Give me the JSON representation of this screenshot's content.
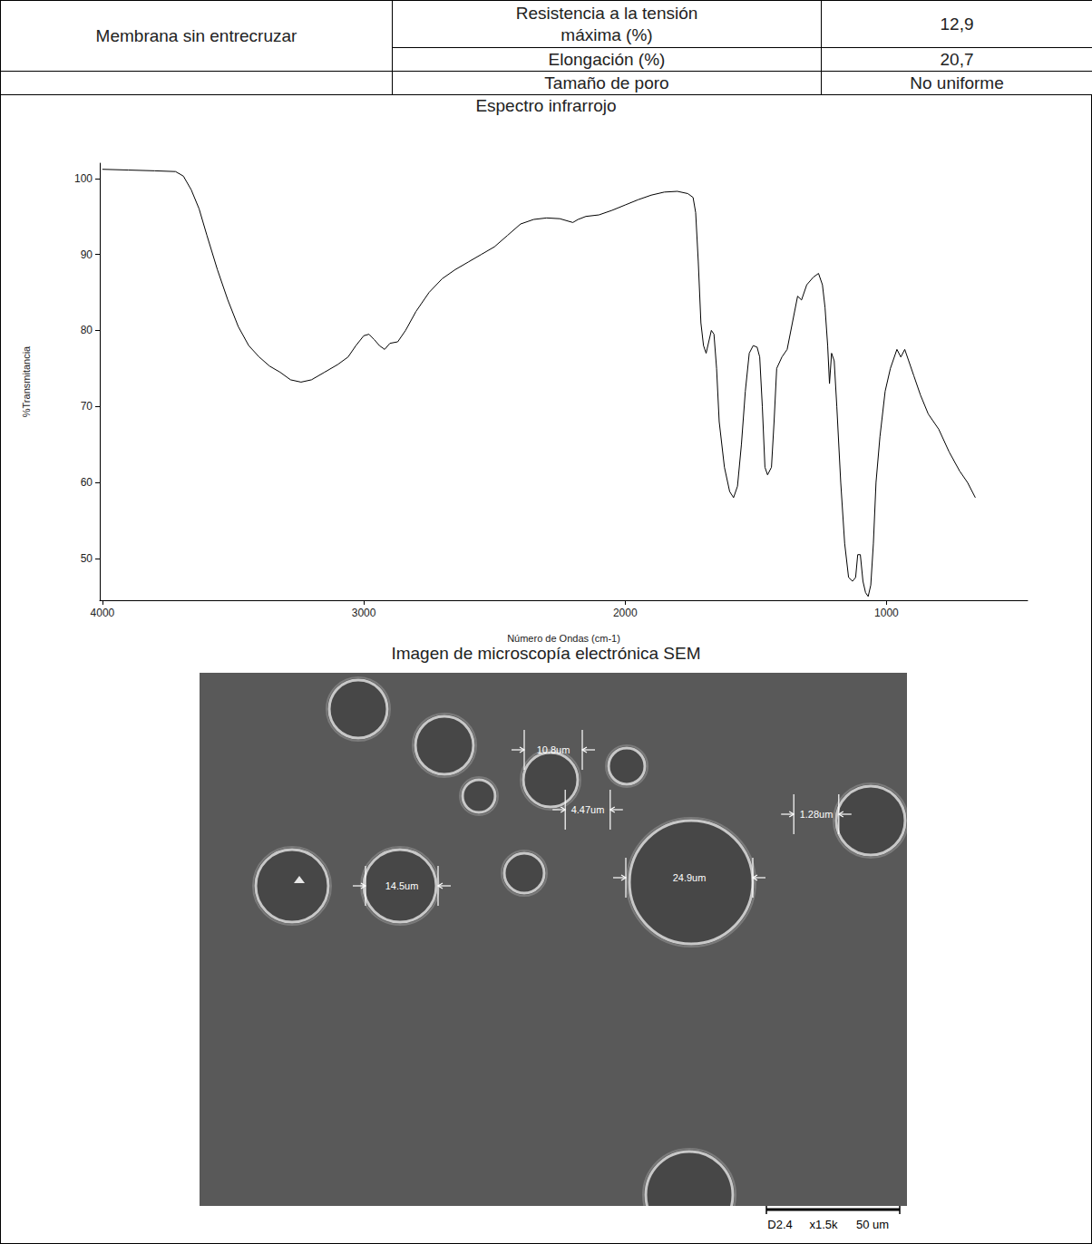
{
  "table": {
    "group": "Membrana sin entrecruzar",
    "rows": [
      [
        "Resistencia a la tensión máxima (%)",
        "12,9"
      ],
      [
        "Elongación (%)",
        "20,7"
      ],
      [
        "Tamaño de poro",
        "No uniforme"
      ]
    ]
  },
  "chart_data": {
    "type": "line",
    "title": "Espectro infrarrojo",
    "x_label": "Número de Ondas (cm-1)",
    "y_label": "%Transmitancia",
    "x": [
      4000,
      3900,
      3800,
      3720,
      3690,
      3660,
      3630,
      3600,
      3560,
      3520,
      3480,
      3440,
      3400,
      3360,
      3320,
      3280,
      3240,
      3200,
      3150,
      3100,
      3060,
      3030,
      3000,
      2980,
      2960,
      2940,
      2920,
      2900,
      2870,
      2840,
      2800,
      2750,
      2700,
      2650,
      2600,
      2550,
      2500,
      2450,
      2400,
      2350,
      2300,
      2250,
      2200,
      2180,
      2150,
      2100,
      2050,
      2000,
      1950,
      1900,
      1850,
      1800,
      1760,
      1740,
      1730,
      1720,
      1710,
      1700,
      1690,
      1680,
      1670,
      1660,
      1650,
      1640,
      1620,
      1600,
      1585,
      1570,
      1555,
      1540,
      1525,
      1510,
      1495,
      1485,
      1475,
      1465,
      1455,
      1440,
      1430,
      1420,
      1400,
      1380,
      1360,
      1340,
      1325,
      1305,
      1280,
      1260,
      1245,
      1235,
      1225,
      1218,
      1210,
      1200,
      1190,
      1175,
      1160,
      1145,
      1130,
      1118,
      1110,
      1100,
      1090,
      1080,
      1070,
      1060,
      1050,
      1040,
      1025,
      1005,
      985,
      960,
      945,
      930,
      915,
      895,
      870,
      840,
      800,
      760,
      720,
      690,
      660
    ],
    "values": [
      101.2,
      101.1,
      101,
      100.9,
      100.3,
      98.5,
      96,
      92.5,
      88,
      84,
      80.5,
      78,
      76.5,
      75.3,
      74.5,
      73.5,
      73.2,
      73.5,
      74.5,
      75.5,
      76.5,
      78,
      79.3,
      79.5,
      78.8,
      78,
      77.5,
      78.3,
      78.5,
      80,
      82.5,
      85,
      86.8,
      88,
      89,
      90,
      91,
      92.5,
      94,
      94.6,
      94.8,
      94.7,
      94.2,
      94.6,
      95,
      95.2,
      95.8,
      96.5,
      97.2,
      97.8,
      98.2,
      98.3,
      98,
      97.5,
      95.5,
      89,
      81,
      78,
      77,
      78.5,
      80,
      79.5,
      75,
      68,
      62,
      58.8,
      58,
      59.5,
      65,
      72,
      77,
      78,
      77.8,
      76.5,
      70,
      62,
      61,
      62,
      68,
      75,
      76.5,
      77.5,
      81,
      84.5,
      84,
      86,
      87,
      87.5,
      86,
      83,
      78,
      73,
      77,
      76,
      70,
      60,
      52,
      47.5,
      47,
      47.5,
      50.5,
      50.5,
      47,
      45.5,
      45,
      46.5,
      52,
      60,
      66,
      72,
      75,
      77.5,
      76.5,
      77.5,
      76,
      74,
      71.5,
      69,
      67,
      64,
      61.5,
      60,
      58
    ],
    "color": "#000000",
    "xlim": [
      4010,
      460
    ],
    "ylim": [
      44.5,
      102
    ],
    "xticks": [
      4000,
      3000,
      2000,
      1000
    ],
    "yticks": [
      50,
      60,
      70,
      80,
      90,
      100
    ],
    "grid": false
  },
  "sem": {
    "title": "Imagen de microscopía electrónica SEM",
    "measurements": [
      "10.8um",
      "4.47um",
      "1.28um",
      "14.5um",
      "24.9um"
    ],
    "scale_bar": [
      "D2.4",
      "x1.5k",
      "50 um"
    ]
  }
}
